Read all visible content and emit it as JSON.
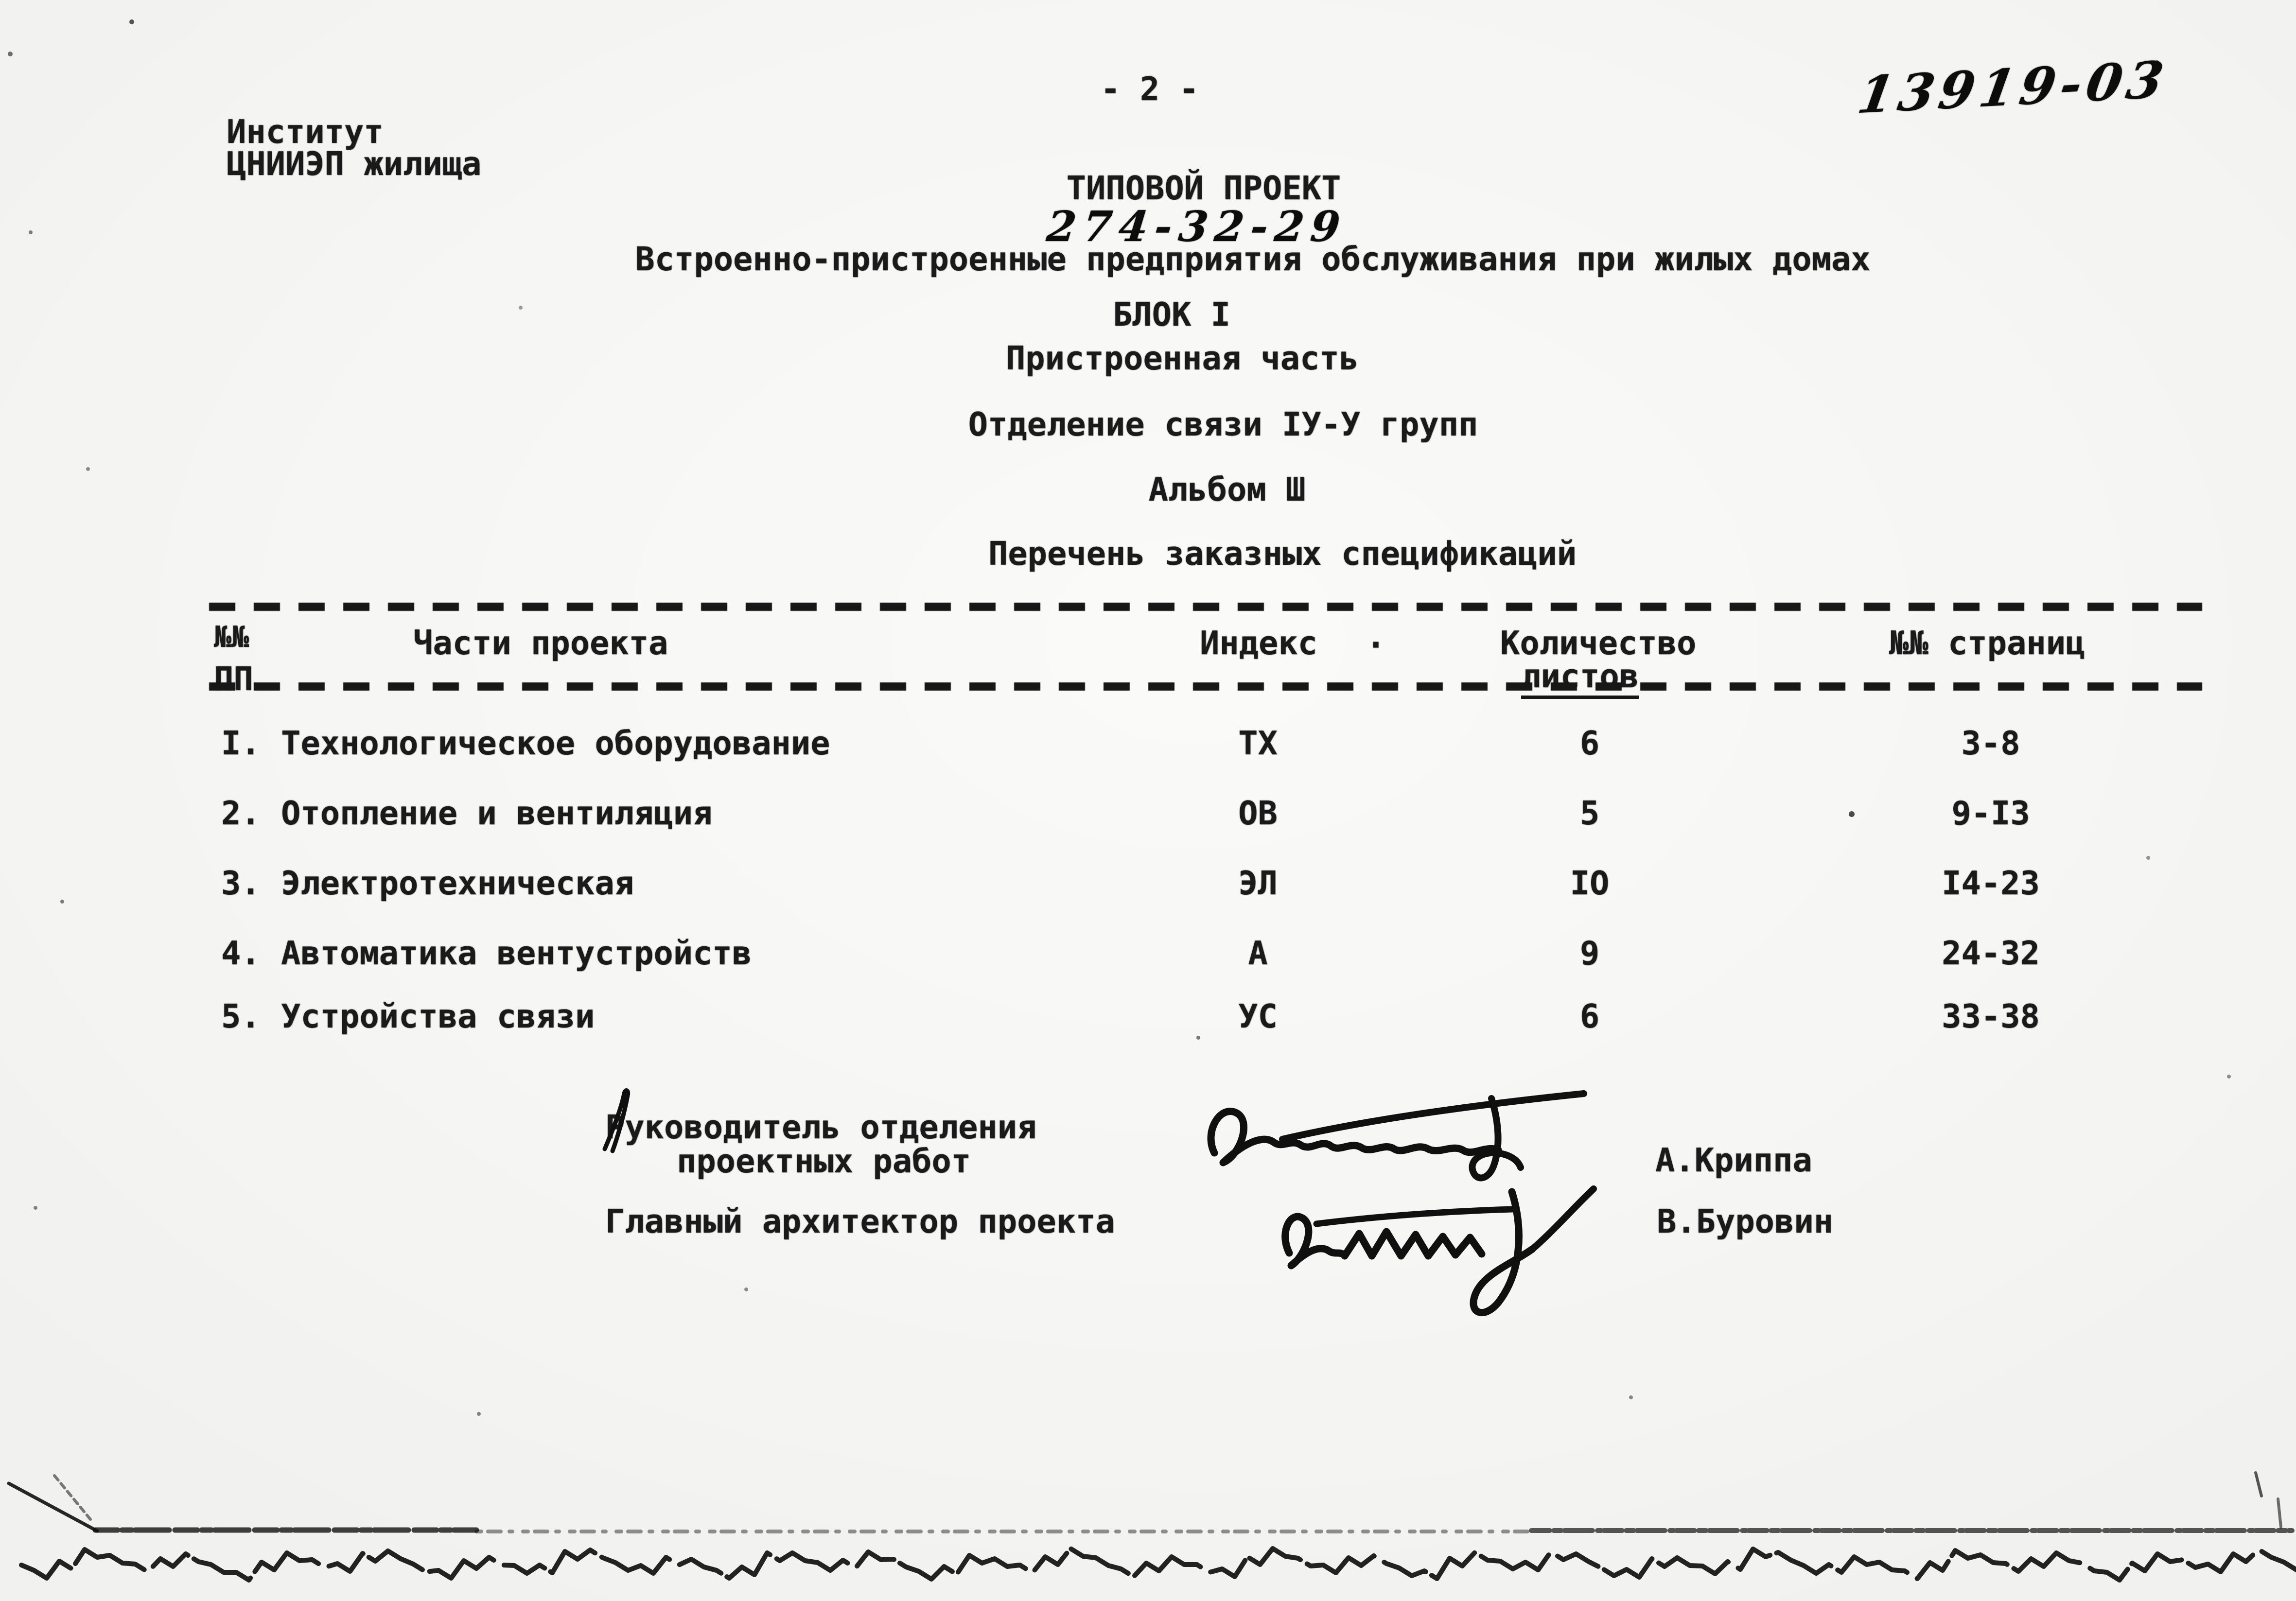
{
  "page": {
    "page_number": "- 2 -",
    "handwritten_doc_number": "13919-03"
  },
  "institute": {
    "line1": "Институт",
    "line2": "ЦНИИЭП жилища"
  },
  "title_block": {
    "project_type": "ТИПОВОЙ ПРОЕКТ",
    "project_number_handwritten": "274-32-29",
    "subtitle": "Встроенно-пристроенные предприятия обслуживания при жилых домах",
    "block": "БЛОК I",
    "part": "Пристроенная часть",
    "department": "Отделение связи IУ-У групп",
    "album": "Альбом Ш",
    "list_title": "Перечень заказных спецификаций"
  },
  "table": {
    "headers": {
      "num_line1": "№№",
      "num_line2": "ПП",
      "parts": "Части проекта",
      "index": "Индекс",
      "index_dot": "·",
      "qty_line1": "Количество",
      "qty_line2": "листов",
      "pages": "№№ страниц"
    },
    "rows": [
      {
        "num": "I.",
        "name": "Технологическое оборудование",
        "index": "ТХ",
        "sheets": "6",
        "pages": "3-8"
      },
      {
        "num": "2.",
        "name": "Отопление и вентиляция",
        "index": "ОВ",
        "sheets": "5",
        "pages": "9-I3"
      },
      {
        "num": "3.",
        "name": "Электротехническая",
        "index": "ЭЛ",
        "sheets": "IO",
        "pages": "I4-23"
      },
      {
        "num": "4.",
        "name": "Автоматика вентустройств",
        "index": "А",
        "sheets": "9",
        "pages": "24-32"
      },
      {
        "num": "5.",
        "name": "Устройства связи",
        "index": "УС",
        "sheets": "6",
        "pages": "33-38"
      }
    ]
  },
  "signature_block": {
    "role1_line1": "Руководитель отделения",
    "role1_line2": "проектных работ",
    "role2": "Главный архитектор проекта",
    "name1": "А.Криппа",
    "name2": "В.Буровин"
  },
  "colors": {
    "ink": "#161616",
    "paper": "#f6f6f4"
  }
}
